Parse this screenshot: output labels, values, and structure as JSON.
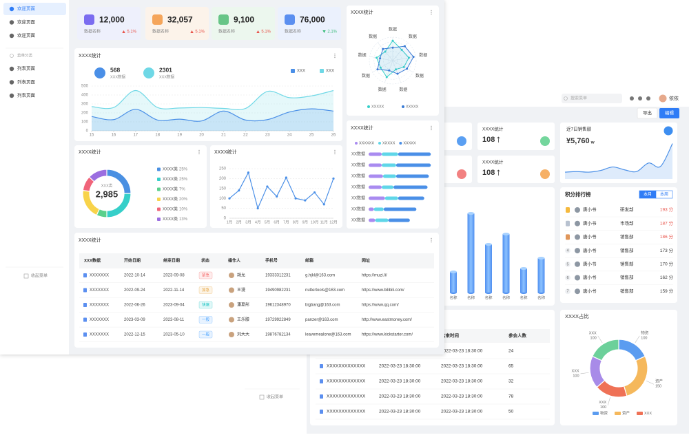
{
  "front": {
    "sidebar": {
      "items": [
        "欢迎页面",
        "欢迎页面",
        "欢迎页面"
      ],
      "section": "菜单分类",
      "subitems": [
        "列表页面",
        "列表页面",
        "列表页面"
      ],
      "collapse": "收起菜单"
    },
    "stats": [
      {
        "value": "12,000",
        "label": "数据名称",
        "change": "5.1%",
        "trend": "up",
        "color": "#7b6cf0",
        "background": "#eef0fc"
      },
      {
        "value": "32,057",
        "label": "数据名称",
        "change": "5.1%",
        "trend": "up",
        "color": "#f5a55a",
        "background": "#fcf3ea"
      },
      {
        "value": "9,100",
        "label": "数据名称",
        "change": "5.1%",
        "trend": "up",
        "color": "#67c587",
        "background": "#ecf7ee"
      },
      {
        "value": "76,000",
        "label": "数据名称",
        "change": "2.1%",
        "trend": "down",
        "color": "#5b8ff0",
        "background": "#ebf1fd"
      }
    ],
    "trend_chart": {
      "type": "line",
      "title": "XXXX统计",
      "smooth": true,
      "area": true,
      "summary": [
        {
          "value": "568",
          "label": "XXX数据"
        },
        {
          "value": "2301",
          "label": "XXX数据"
        }
      ],
      "x": [
        15,
        16,
        17,
        18,
        19,
        20,
        21,
        22,
        23,
        24,
        25,
        26
      ],
      "xlim": [
        15,
        26
      ],
      "xticks": [
        15,
        16,
        17,
        18,
        19,
        20,
        21,
        22,
        23,
        24,
        25,
        26
      ],
      "ylim": [
        0,
        500
      ],
      "yticks": [
        0,
        100,
        200,
        300,
        400,
        500
      ],
      "series": [
        {
          "name": "XXX",
          "color": "#4a8fe7",
          "values": [
            160,
            125,
            240,
            120,
            130,
            110,
            220,
            120,
            125,
            210,
            245,
            220
          ]
        },
        {
          "name": "XXX",
          "color": "#6fd8e6",
          "values": [
            270,
            260,
            450,
            260,
            255,
            260,
            250,
            250,
            440,
            370,
            390,
            450
          ]
        }
      ]
    },
    "donut_chart": {
      "type": "pie",
      "title": "XXXX统计",
      "center_label": "XXX类",
      "center_value": "2,985",
      "categories": [
        "XXXX类",
        "XXXX类",
        "XXXX类",
        "XXXX类",
        "XXXX类",
        "XXXX类"
      ],
      "values": [
        25,
        25,
        7,
        20,
        10,
        13
      ],
      "value_labels": [
        "25%",
        "25%",
        "7%",
        "20%",
        "10%",
        "13%"
      ],
      "colors": [
        "#4a90e2",
        "#36cfc9",
        "#5ad08c",
        "#f8d34a",
        "#f0647a",
        "#9b6ee0"
      ]
    },
    "line_chart": {
      "type": "line",
      "title": "XXXX统计",
      "markers": true,
      "color": "#4a8fe7",
      "categories": [
        "1月",
        "2月",
        "3月",
        "4月",
        "5月",
        "6月",
        "7月",
        "8月",
        "9月",
        "10月",
        "11月",
        "12月"
      ],
      "values": [
        100,
        140,
        230,
        50,
        160,
        110,
        205,
        100,
        90,
        130,
        70,
        200
      ],
      "ylim": [
        0,
        250
      ],
      "yticks": [
        0,
        50,
        100,
        150,
        200,
        250
      ]
    },
    "radar_chart": {
      "type": "radar",
      "title": "XXXX统计",
      "categories": [
        "数据",
        "数据",
        "数据",
        "数据",
        "数据",
        "数据",
        "数据",
        "数据",
        "数据"
      ],
      "rlim": [
        0,
        100
      ],
      "series": [
        {
          "name": "XXXXX",
          "color": "#36cfc9",
          "values": [
            85,
            60,
            70,
            55,
            40,
            75,
            60,
            70,
            50
          ]
        },
        {
          "name": "XXXXX",
          "color": "#3a7bd5",
          "values": [
            55,
            80,
            90,
            70,
            60,
            45,
            75,
            55,
            65
          ]
        }
      ]
    },
    "stacked_bar": {
      "type": "bar",
      "orientation": "horizontal",
      "stacked": true,
      "title": "XXXX统计",
      "categories": [
        "XX数据",
        "XX数据",
        "XX数据",
        "XX数据",
        "XX数据",
        "XX数据",
        "XX数据"
      ],
      "series": [
        {
          "name": "XXXXXX",
          "color": "#a98bf0",
          "values": [
            20,
            20,
            22,
            20,
            25,
            8,
            10
          ]
        },
        {
          "name": "XXXXX",
          "color": "#5fd6e8",
          "values": [
            25,
            22,
            20,
            18,
            20,
            15,
            20
          ]
        },
        {
          "name": "XXXXX",
          "color": "#4a8fe7",
          "values": [
            50,
            53,
            50,
            52,
            40,
            50,
            33
          ]
        }
      ]
    },
    "table": {
      "title": "XXXX统计",
      "columns": [
        "XXX数据",
        "开始日期",
        "结束日期",
        "状态",
        "操作人",
        "手机号",
        "邮箱",
        "网址"
      ],
      "rows": [
        [
          "XXXXXXX",
          "2022-10-14",
          "2023-09-08",
          "紧急",
          "胡允",
          "19333312231",
          "g.hjkl@163.com",
          "https://muzi.li/"
        ],
        [
          "XXXXXXX",
          "2022-09-24",
          "2022-11-14",
          "加急",
          "王漫",
          "19490982231",
          "nuttertools@163.com",
          "https://www.bilibili.com/"
        ],
        [
          "XXXXXXX",
          "2022-06-26",
          "2023-09-04",
          "快速",
          "潘夏彤",
          "19612348970",
          "bigbang@163.com",
          "https://www.qq.com/"
        ],
        [
          "XXXXXXX",
          "2023-03-09",
          "2023-08-11",
          "一般",
          "王乐膝",
          "19729922849",
          "panzer@163.com",
          "http://www.eastmoney.com/"
        ],
        [
          "XXXXXXX",
          "2022-12-15",
          "2023-05-10",
          "一般",
          "刘大大",
          "19876782134",
          "leavemealone@163.com",
          "https://www.kickstarter.com/"
        ]
      ],
      "status_colors": [
        "#f56c6c",
        "#e6a23c",
        "#13c2c2",
        "#409eff",
        "#409eff"
      ]
    }
  },
  "back": {
    "search": "搜索菜单",
    "user": "依依",
    "buttons": [
      "导出",
      "编辑"
    ],
    "collapse": "收起菜单",
    "stats": [
      {
        "label": "XXXX统计",
        "value": "108"
      },
      {
        "label": "XXXX统计",
        "value": "108"
      }
    ],
    "sales": {
      "type": "line",
      "label": "近7日销售额",
      "value": "¥5,760",
      "unit": "w",
      "smooth": true,
      "area": true,
      "color": "#4a8fe7",
      "values": [
        12,
        13,
        12,
        15,
        21,
        16,
        13,
        28,
        22,
        62
      ]
    },
    "bar_chart": {
      "type": "bar",
      "orientation": "vertical",
      "style": "cylinder",
      "categories": [
        "名称",
        "名称",
        "名称",
        "名称",
        "名称",
        "名称"
      ],
      "values": [
        30,
        115,
        70,
        85,
        35,
        50
      ]
    },
    "ranking": {
      "title": "积分排行榜",
      "tabs": [
        "本月",
        "本周"
      ],
      "rows": [
        {
          "name": "唐小书",
          "dept": "研发部",
          "score": "193 分"
        },
        {
          "name": "唐小书",
          "dept": "市场部",
          "score": "187 分"
        },
        {
          "name": "唐小书",
          "dept": "销售部",
          "score": "186 分"
        },
        {
          "rank": "4",
          "name": "唐小书",
          "dept": "销售部",
          "score": "173 分"
        },
        {
          "rank": "5",
          "name": "唐小书",
          "dept": "销售部",
          "score": "170 分"
        },
        {
          "rank": "6",
          "name": "唐小书",
          "dept": "销售部",
          "score": "162 分"
        },
        {
          "rank": "7",
          "name": "唐小书",
          "dept": "销售部",
          "score": "159 分"
        }
      ]
    },
    "table": {
      "columns": [
        "结束时间",
        "参会人数"
      ],
      "rows": [
        [
          "XXXXXXXXXXXXX",
          "2022-03-23 18:30:00",
          "2022-03-23 18:30:00",
          "24"
        ],
        [
          "XXXXXXXXXXXXX",
          "2022-03-23 18:30:00",
          "2022-03-23 18:30:00",
          "65"
        ],
        [
          "XXXXXXXXXXXXX",
          "2022-03-23 18:30:00",
          "2022-03-23 18:30:00",
          "32"
        ],
        [
          "XXXXXXXXXXXXX",
          "2022-03-23 18:30:00",
          "2022-03-23 18:30:00",
          "78"
        ],
        [
          "XXXXXXXXXXXXX",
          "2022-03-23 18:30:00",
          "2022-03-23 18:30:00",
          "50"
        ]
      ]
    },
    "share_chart": {
      "type": "pie",
      "title": "XXXX占比",
      "categories": [
        "物资",
        "资产",
        "XXX",
        "XXX",
        "XXX"
      ],
      "values": [
        100,
        150,
        100,
        100,
        100
      ],
      "colors": [
        "#5b9cf0",
        "#f5b85c",
        "#ef7156",
        "#a88be8",
        "#6cd09a"
      ],
      "legend": [
        "物资",
        "资产",
        "XXX"
      ]
    }
  }
}
